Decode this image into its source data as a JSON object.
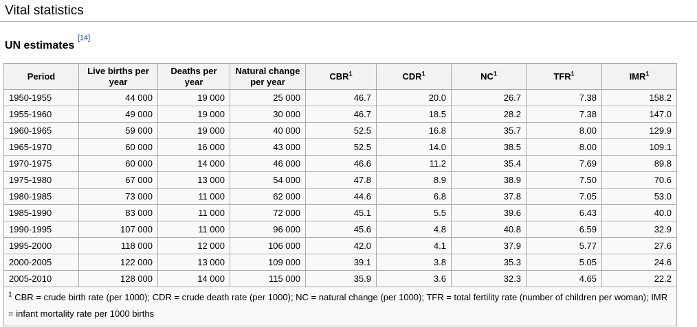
{
  "page": {
    "section_title": "Vital statistics",
    "subsection_title": "UN estimates",
    "citation": "[14]"
  },
  "table": {
    "columns": [
      {
        "label": "Period",
        "sup": ""
      },
      {
        "label": "Live births per year",
        "sup": ""
      },
      {
        "label": "Deaths per year",
        "sup": ""
      },
      {
        "label": "Natural change per year",
        "sup": ""
      },
      {
        "label": "CBR",
        "sup": "1"
      },
      {
        "label": "CDR",
        "sup": "1"
      },
      {
        "label": "NC",
        "sup": "1"
      },
      {
        "label": "TFR",
        "sup": "1"
      },
      {
        "label": "IMR",
        "sup": "1"
      }
    ],
    "rows": [
      [
        "1950-1955",
        "44 000",
        "19 000",
        "25 000",
        "46.7",
        "20.0",
        "26.7",
        "7.38",
        "158.2"
      ],
      [
        "1955-1960",
        "49 000",
        "19 000",
        "30 000",
        "46.7",
        "18.5",
        "28.2",
        "7.38",
        "147.0"
      ],
      [
        "1960-1965",
        "59 000",
        "19 000",
        "40 000",
        "52.5",
        "16.8",
        "35.7",
        "8.00",
        "129.9"
      ],
      [
        "1965-1970",
        "60 000",
        "16 000",
        "43 000",
        "52.5",
        "14.0",
        "38.5",
        "8.00",
        "109.1"
      ],
      [
        "1970-1975",
        "60 000",
        "14 000",
        "46 000",
        "46.6",
        "11.2",
        "35.4",
        "7.69",
        "89.8"
      ],
      [
        "1975-1980",
        "67 000",
        "13 000",
        "54 000",
        "47.8",
        "8.9",
        "38.9",
        "7.50",
        "70.6"
      ],
      [
        "1980-1985",
        "73 000",
        "11 000",
        "62 000",
        "44.6",
        "6.8",
        "37.8",
        "7.05",
        "53.0"
      ],
      [
        "1985-1990",
        "83 000",
        "11 000",
        "72 000",
        "45.1",
        "5.5",
        "39.6",
        "6.43",
        "40.0"
      ],
      [
        "1990-1995",
        "107 000",
        "11 000",
        "96 000",
        "45.6",
        "4.8",
        "40.8",
        "6.59",
        "32.9"
      ],
      [
        "1995-2000",
        "118 000",
        "12 000",
        "106 000",
        "42.0",
        "4.1",
        "37.9",
        "5.77",
        "27.6"
      ],
      [
        "2000-2005",
        "122 000",
        "13 000",
        "109 000",
        "39.1",
        "3.8",
        "35.3",
        "5.05",
        "24.6"
      ],
      [
        "2005-2010",
        "128 000",
        "14 000",
        "115 000",
        "35.9",
        "3.6",
        "32.3",
        "4.65",
        "22.2"
      ]
    ],
    "footnote_sup": "1",
    "footnote": "CBR = crude birth rate (per 1000); CDR = crude death rate (per 1000); NC = natural change (per 1000); TFR = total fertility rate (number of children per woman); IMR = infant mortality rate per 1000 births"
  },
  "colors": {
    "border": "#aaaaaa",
    "header_bg": "#f2f2f2",
    "cell_bg": "#f9f9f9",
    "link": "#0645ad",
    "text": "#000000"
  }
}
